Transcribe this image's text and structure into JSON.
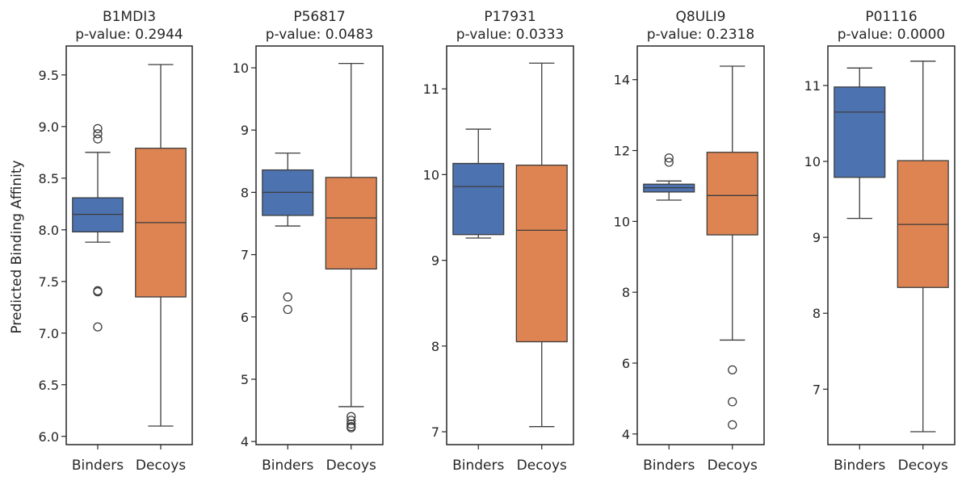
{
  "figure": {
    "ylabel": "Predicted Binding Affinity"
  },
  "chart_data": [
    {
      "type": "box",
      "title": "B1MDI3",
      "subtitle": "p-value: 0.2944",
      "categories": [
        "Binders",
        "Decoys"
      ],
      "ylim": [
        5.92,
        9.78
      ],
      "yticks": [
        "6.0",
        "6.5",
        "7.0",
        "7.5",
        "8.0",
        "8.5",
        "9.0",
        "9.5"
      ],
      "boxes": [
        {
          "name": "Binders",
          "color": "#4c72b0",
          "whislo": 7.88,
          "q1": 7.98,
          "med": 8.15,
          "q3": 8.31,
          "whishi": 8.75,
          "fliers": [
            8.98,
            8.93,
            8.88,
            7.41,
            7.4,
            7.06
          ]
        },
        {
          "name": "Decoys",
          "color": "#dd8452",
          "whislo": 6.1,
          "q1": 7.35,
          "med": 8.07,
          "q3": 8.79,
          "whishi": 9.6,
          "fliers": []
        }
      ]
    },
    {
      "type": "box",
      "title": "P56817",
      "subtitle": "p-value: 0.0483",
      "categories": [
        "Binders",
        "Decoys"
      ],
      "ylim": [
        3.95,
        10.35
      ],
      "yticks": [
        "4",
        "5",
        "6",
        "7",
        "8",
        "9",
        "10"
      ],
      "boxes": [
        {
          "name": "Binders",
          "color": "#4c72b0",
          "whislo": 7.46,
          "q1": 7.63,
          "med": 8.0,
          "q3": 8.36,
          "whishi": 8.63,
          "fliers": [
            6.32,
            6.12
          ]
        },
        {
          "name": "Decoys",
          "color": "#dd8452",
          "whislo": 4.56,
          "q1": 6.77,
          "med": 7.59,
          "q3": 8.24,
          "whishi": 10.07,
          "fliers": [
            4.4,
            4.34,
            4.28,
            4.24,
            4.22
          ]
        }
      ]
    },
    {
      "type": "box",
      "title": "P17931",
      "subtitle": "p-value: 0.0333",
      "categories": [
        "Binders",
        "Decoys"
      ],
      "ylim": [
        6.85,
        11.5
      ],
      "yticks": [
        "7",
        "8",
        "9",
        "10",
        "11"
      ],
      "boxes": [
        {
          "name": "Binders",
          "color": "#4c72b0",
          "whislo": 9.26,
          "q1": 9.3,
          "med": 9.86,
          "q3": 10.13,
          "whishi": 10.53,
          "fliers": []
        },
        {
          "name": "Decoys",
          "color": "#dd8452",
          "whislo": 7.06,
          "q1": 8.05,
          "med": 9.35,
          "q3": 10.11,
          "whishi": 11.3,
          "fliers": []
        }
      ]
    },
    {
      "type": "box",
      "title": "Q8ULI9",
      "subtitle": "p-value: 0.2318",
      "categories": [
        "Binders",
        "Decoys"
      ],
      "ylim": [
        3.7,
        14.95
      ],
      "yticks": [
        "4",
        "6",
        "8",
        "10",
        "12",
        "14"
      ],
      "boxes": [
        {
          "name": "Binders",
          "color": "#4c72b0",
          "whislo": 10.6,
          "q1": 10.83,
          "med": 10.95,
          "q3": 11.05,
          "whishi": 11.14,
          "fliers": [
            11.79,
            11.67
          ]
        },
        {
          "name": "Decoys",
          "color": "#dd8452",
          "whislo": 6.65,
          "q1": 9.62,
          "med": 10.73,
          "q3": 11.95,
          "whishi": 14.38,
          "fliers": [
            5.81,
            4.91,
            4.26
          ]
        }
      ]
    },
    {
      "type": "box",
      "title": "P01116",
      "subtitle": "p-value: 0.0000",
      "categories": [
        "Binders",
        "Decoys"
      ],
      "ylim": [
        6.27,
        11.52
      ],
      "yticks": [
        "7",
        "8",
        "9",
        "10",
        "11"
      ],
      "boxes": [
        {
          "name": "Binders",
          "color": "#4c72b0",
          "whislo": 9.25,
          "q1": 9.79,
          "med": 10.65,
          "q3": 10.98,
          "whishi": 11.23,
          "fliers": []
        },
        {
          "name": "Decoys",
          "color": "#dd8452",
          "whislo": 6.44,
          "q1": 8.34,
          "med": 9.17,
          "q3": 10.01,
          "whishi": 11.32,
          "fliers": []
        }
      ]
    }
  ]
}
